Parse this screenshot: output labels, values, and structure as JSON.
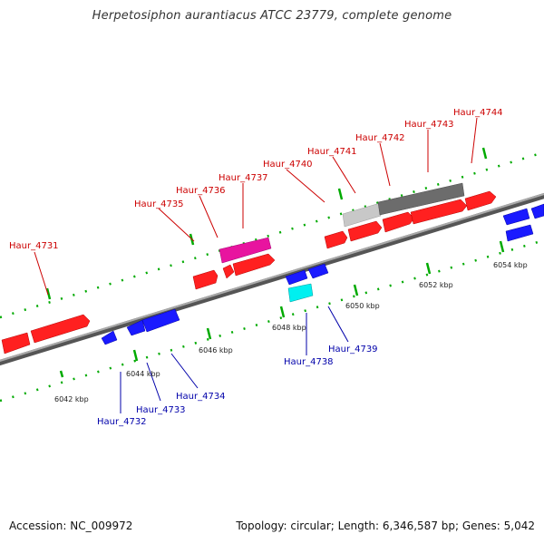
{
  "title": "Herpetosiphon aurantiacus ATCC 23779, complete genome",
  "footer": {
    "accession": "Accession: NC_009972",
    "summary": "Topology: circular; Length: 6,346,587 bp; Genes: 5,042"
  },
  "colors": {
    "forward_gene": "#ff1a1a",
    "reverse_gene": "#1a1aff",
    "pink_gene": "#e0109b",
    "cyan_gene": "#00ffff",
    "grey_dark": "#666666",
    "grey_light": "#bdbdbd",
    "dots": "#00aa00",
    "backbone": "#777777",
    "fwd_label": "#cc0000",
    "rev_label": "#0000aa"
  },
  "ticks": [
    "6042 kbp",
    "6044 kbp",
    "6046 kbp",
    "6048 kbp",
    "6050 kbp",
    "6052 kbp",
    "6054 kbp"
  ],
  "gene_labels": {
    "forward": [
      "Haur_4731",
      "Haur_4735",
      "Haur_4736",
      "Haur_4737",
      "Haur_4740",
      "Haur_4741",
      "Haur_4742",
      "Haur_4743",
      "Haur_4744"
    ],
    "reverse": [
      "Haur_4732",
      "Haur_4733",
      "Haur_4734",
      "Haur_4738",
      "Haur_4739"
    ]
  }
}
